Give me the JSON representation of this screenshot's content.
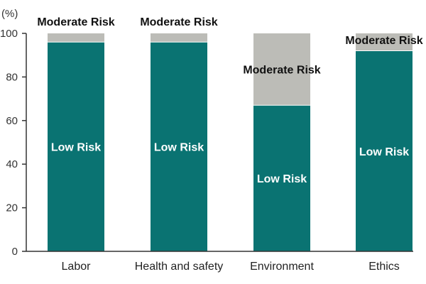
{
  "chart_data": {
    "type": "bar",
    "stacked": true,
    "unit_label": "(%)",
    "ylim": [
      0,
      100
    ],
    "yticks": [
      0,
      20,
      40,
      60,
      80,
      100
    ],
    "grid": false,
    "categories": [
      "Labor",
      "Health and safety",
      "Environment",
      "Ethics"
    ],
    "series": [
      {
        "name": "Low Risk",
        "values": [
          96,
          96,
          67,
          92
        ],
        "color": "#0a7372",
        "label_color": "#ffffff"
      },
      {
        "name": "Moderate Risk",
        "values": [
          4,
          4,
          33,
          8
        ],
        "color": "#bcbcb7",
        "label_color": "#111111"
      }
    ],
    "segment_label_position": {
      "Low Risk": [
        "inside",
        "inside",
        "inside",
        "inside"
      ],
      "Moderate Risk": [
        "above",
        "above",
        "inside",
        "above"
      ]
    }
  }
}
